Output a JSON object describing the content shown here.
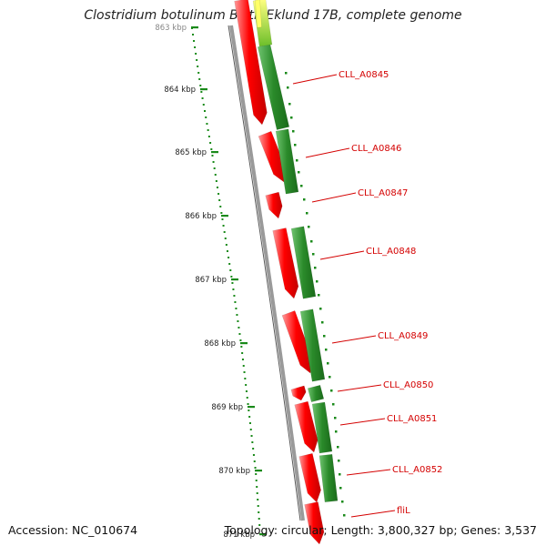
{
  "title": "Clostridium botulinum B str. Eklund 17B, complete genome",
  "accession": "Accession: NC_010674",
  "summary": "Topology: circular; Length: 3,800,327 bp; Genes: 3,537",
  "scale_labels": [
    "863 kbp",
    "864 kbp",
    "865 kbp",
    "866 kbp",
    "867 kbp",
    "868 kbp",
    "869 kbp",
    "870 kbp",
    "871 kbp"
  ],
  "gene_labels": [
    "CLL_A0845",
    "CLL_A0846",
    "CLL_A0847",
    "CLL_A0848",
    "CLL_A0849",
    "CLL_A0850",
    "CLL_A0851",
    "CLL_A0852",
    "fliL"
  ],
  "colors": {
    "forward_cds": "#ff0000",
    "orf": "#2e8b2e",
    "orf_light": "#c8e040",
    "backbone": "#8c8c8c",
    "label": "#d40000",
    "tick": "#1a8a1a"
  }
}
